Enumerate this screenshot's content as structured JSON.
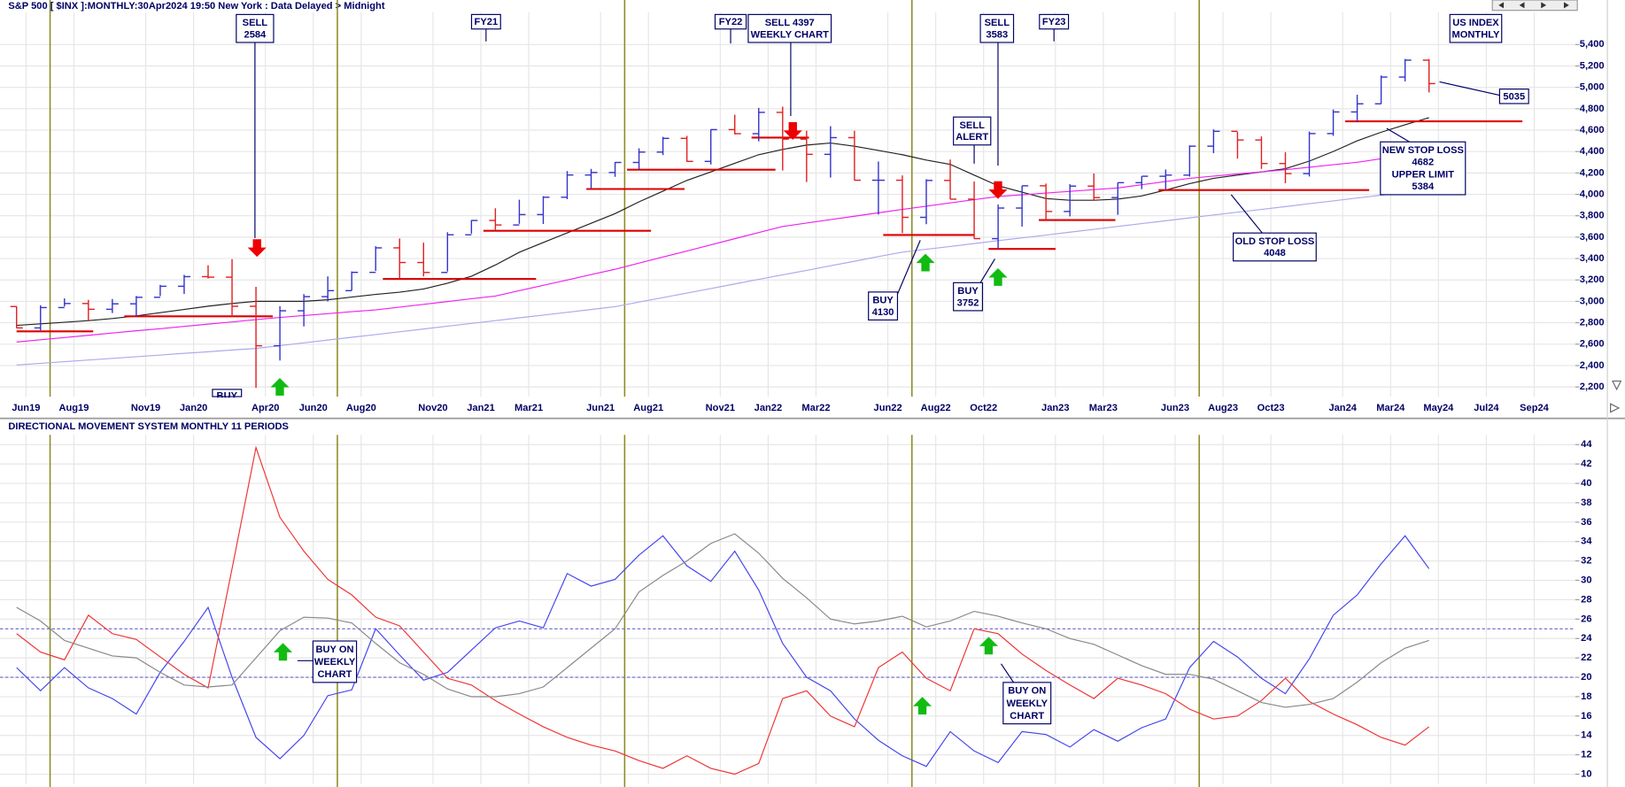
{
  "chart_data": [
    {
      "type": "ohlc",
      "title": "S&P 500 [ $INX ]:MONTHLY:30Apr2024 19:50 New York : Data Delayed > Midnight",
      "categories": [
        null,
        "Jun19",
        null,
        "Aug19",
        null,
        null,
        "Nov19",
        null,
        "Jan20",
        null,
        null,
        "Apr20",
        null,
        "Jun20",
        null,
        "Aug20",
        null,
        null,
        "Nov20",
        null,
        "Jan21",
        null,
        "Mar21",
        null,
        null,
        "Jun21",
        null,
        "Aug21",
        null,
        null,
        "Nov21",
        null,
        "Jan22",
        null,
        "Mar22",
        null,
        null,
        "Jun22",
        null,
        "Aug22",
        null,
        "Oct22",
        null,
        null,
        "Jan23",
        null,
        "Mar23",
        null,
        null,
        "Jun23",
        null,
        "Aug23",
        null,
        "Oct23",
        null,
        null,
        "Jan24",
        null,
        "Mar24",
        null,
        "May24",
        null,
        "Jul24",
        null,
        "Sep24"
      ],
      "open": [
        2952,
        2752,
        2942,
        2980,
        2926,
        2977,
        3038,
        3141,
        3231,
        3226,
        2954,
        2585,
        2912,
        3044,
        3100,
        3271,
        3500,
        3363,
        3270,
        3622,
        3756,
        3714,
        3811,
        3973,
        4181,
        4204,
        4298,
        4395,
        4523,
        4308,
        4605,
        4567,
        4766,
        4516,
        4374,
        4530,
        4132,
        4132,
        3785,
        4130,
        3955,
        3586,
        3872,
        4080,
        3840,
        4077,
        3970,
        4109,
        4169,
        4180,
        4450,
        4589,
        4508,
        4288,
        4194,
        4568,
        4770,
        4846,
        5096,
        5254,
        null,
        null,
        null,
        null,
        null
      ],
      "high": [
        2954,
        2964,
        3028,
        3014,
        3022,
        3050,
        3154,
        3248,
        3338,
        3394,
        3136,
        2955,
        3068,
        3233,
        3280,
        3515,
        3588,
        3549,
        3646,
        3760,
        3870,
        3950,
        3983,
        4218,
        4238,
        4302,
        4430,
        4537,
        4546,
        4608,
        4744,
        4808,
        4819,
        4595,
        4637,
        4594,
        4307,
        4177,
        4141,
        4325,
        4120,
        3905,
        4080,
        4101,
        4095,
        4195,
        4110,
        4170,
        4232,
        4458,
        4607,
        4584,
        4541,
        4393,
        4587,
        4793,
        4931,
        5111,
        5265,
        5264,
        null,
        null,
        null,
        null,
        null
      ],
      "low": [
        2750,
        2729,
        2952,
        2822,
        2891,
        2855,
        3050,
        3070,
        3214,
        2855,
        2192,
        2447,
        2766,
        2999,
        3101,
        3284,
        3209,
        3233,
        3279,
        3633,
        3662,
        3725,
        3723,
        3955,
        4057,
        4164,
        4233,
        4367,
        4305,
        4279,
        4560,
        4495,
        4223,
        4115,
        4157,
        4129,
        3811,
        3637,
        3721,
        3954,
        3585,
        3492,
        3699,
        3764,
        3794,
        3943,
        3809,
        4049,
        4048,
        4166,
        4385,
        4335,
        4238,
        4104,
        4167,
        4547,
        4683,
        4845,
        5056,
        4953,
        null,
        null,
        null,
        null,
        null
      ],
      "close": [
        2752,
        2942,
        2980,
        2926,
        2977,
        3038,
        3141,
        3231,
        3226,
        2954,
        2585,
        2912,
        3044,
        3100,
        3271,
        3500,
        3363,
        3270,
        3622,
        3756,
        3714,
        3811,
        3973,
        4181,
        4204,
        4298,
        4395,
        4523,
        4308,
        4605,
        4567,
        4766,
        4516,
        4374,
        4530,
        4132,
        4132,
        3785,
        4130,
        3955,
        3586,
        3872,
        4080,
        3840,
        4077,
        3970,
        4109,
        4169,
        4180,
        4450,
        4589,
        4508,
        4288,
        4194,
        4568,
        4770,
        4846,
        5096,
        5254,
        5035,
        null,
        null,
        null,
        null,
        null
      ],
      "up_color": "#3333cc",
      "down_color": "#e02020",
      "series": [
        {
          "color": "#222222",
          "values": [
            2776,
            2790,
            2805,
            2820,
            2840,
            2865,
            2895,
            2925,
            2955,
            2980,
            3000,
            3000,
            3000,
            3015,
            3040,
            3065,
            3085,
            3115,
            3170,
            3234,
            3340,
            3459,
            3550,
            3640,
            3730,
            3820,
            3930,
            4030,
            4130,
            4210,
            4290,
            4370,
            4420,
            4460,
            4480,
            4450,
            4410,
            4370,
            4320,
            4280,
            4180,
            4080,
            4020,
            3960,
            3945,
            3945,
            3955,
            3985,
            4040,
            4100,
            4150,
            4180,
            4210,
            4240,
            4310,
            4400,
            4500,
            4580,
            4650,
            4717,
            null,
            null,
            null,
            null,
            null
          ]
        },
        {
          "color": "#ee22ee",
          "values": [
            2620,
            2641,
            2662,
            2683,
            2704,
            2725,
            2745,
            2766,
            2787,
            2808,
            2829,
            2850,
            2868,
            2885,
            2903,
            2920,
            2946,
            2972,
            2998,
            3024,
            3050,
            3100,
            3150,
            3200,
            3250,
            3300,
            3357,
            3414,
            3471,
            3529,
            3586,
            3643,
            3700,
            3732,
            3764,
            3796,
            3828,
            3860,
            3890,
            3920,
            3950,
            3980,
            3996,
            4012,
            4028,
            4044,
            4060,
            4090,
            4120,
            4150,
            4170,
            4190,
            4210,
            4230,
            4253,
            4277,
            4300,
            4333,
            4367,
            4400,
            null,
            null,
            null,
            null,
            null
          ]
        },
        {
          "color": "#aaaaee",
          "values": [
            2405,
            2421,
            2436,
            2452,
            2467,
            2483,
            2498,
            2514,
            2529,
            2545,
            2560,
            2586,
            2612,
            2638,
            2664,
            2690,
            2716,
            2742,
            2768,
            2794,
            2820,
            2846,
            2872,
            2898,
            2924,
            2950,
            2993,
            3035,
            3078,
            3120,
            3163,
            3205,
            3248,
            3290,
            3333,
            3375,
            3418,
            3460,
            3487,
            3513,
            3540,
            3567,
            3593,
            3620,
            3647,
            3673,
            3700,
            3727,
            3753,
            3780,
            3807,
            3833,
            3860,
            3886,
            3913,
            3939,
            3966,
            3992,
            4019,
            4045,
            null,
            null,
            null,
            null,
            null
          ]
        }
      ],
      "stop_color": "#dd0000",
      "stop_lines": [
        {
          "value": 2720,
          "start": 0,
          "end": 3.2
        },
        {
          "value": 2860,
          "start": 4.5,
          "end": 10.7
        },
        {
          "value": 3210,
          "start": 15.3,
          "end": 21.7
        },
        {
          "value": 3660,
          "start": 19.5,
          "end": 26.5
        },
        {
          "value": 4050,
          "start": 23.8,
          "end": 27.9
        },
        {
          "value": 4230,
          "start": 25.5,
          "end": 31.7
        },
        {
          "value": 4530,
          "start": 30.7,
          "end": 33.1
        },
        {
          "value": 3620,
          "start": 36.2,
          "end": 40
        },
        {
          "value": 3490,
          "start": 40.6,
          "end": 43.4
        },
        {
          "value": 3760,
          "start": 42.7,
          "end": 45.9
        },
        {
          "value": 4040,
          "start": 47.7,
          "end": 56.5
        },
        {
          "value": 4682,
          "start": 55.5,
          "end": 62.9
        }
      ],
      "annotations": [
        {
          "lines": [
            "SELL",
            "2584"
          ]
        },
        {
          "lines": [
            "FY21"
          ]
        },
        {
          "lines": [
            "FY22"
          ]
        },
        {
          "lines": [
            "SELL  4397",
            "WEEKLY CHART"
          ]
        },
        {
          "lines": [
            "SELL",
            "3583"
          ]
        },
        {
          "lines": [
            "FY23"
          ]
        },
        {
          "lines": [
            "US INDEX",
            "MONTHLY"
          ]
        },
        {
          "lines": [
            "SELL",
            "ALERT"
          ]
        },
        {
          "lines": [
            "5035"
          ]
        },
        {
          "lines": [
            "NEW STOP LOSS",
            "4682",
            "UPPER LIMIT",
            "5384"
          ]
        },
        {
          "lines": [
            "OLD STOP LOSS",
            "4048"
          ]
        },
        {
          "lines": [
            "BUY",
            "4130"
          ]
        },
        {
          "lines": [
            "BUY",
            "3752"
          ]
        },
        {
          "lines": [
            "BUY"
          ]
        }
      ],
      "ylim": [
        2110,
        5700
      ],
      "yticks": [
        {
          "value": 2200,
          "label": "2,200"
        },
        {
          "value": 2400,
          "label": "2,400"
        },
        {
          "value": 2600,
          "label": "2,600"
        },
        {
          "value": 2800,
          "label": "2,800"
        },
        {
          "value": 3000,
          "label": "3,000"
        },
        {
          "value": 3200,
          "label": "3,200"
        },
        {
          "value": 3400,
          "label": "3,400"
        },
        {
          "value": 3600,
          "label": "3,600"
        },
        {
          "value": 3800,
          "label": "3,800"
        },
        {
          "value": 4000,
          "label": "4,000"
        },
        {
          "value": 4200,
          "label": "4,200"
        },
        {
          "value": 4400,
          "label": "4,400"
        },
        {
          "value": 4600,
          "label": "4,600"
        },
        {
          "value": 4800,
          "label": "4,800"
        },
        {
          "value": 5000,
          "label": "5,000"
        },
        {
          "value": 5200,
          "label": "5,200"
        },
        {
          "value": 5400,
          "label": "5,400"
        }
      ],
      "grid": true
    },
    {
      "type": "line",
      "title": "DIRECTIONAL MOVEMENT SYSTEM MONTHLY 11 PERIODS",
      "series": [
        {
          "color": "#4444ee",
          "values": [
            21.0,
            18.6,
            21,
            18.9,
            17.8,
            16.2,
            20.5,
            23.7,
            27.2,
            20,
            13.8,
            11.6,
            14,
            18.1,
            18.7,
            25,
            22.3,
            19.7,
            20.5,
            22.8,
            25.1,
            25.8,
            25.1,
            30.7,
            29.4,
            30.1,
            32.6,
            34.6,
            31.5,
            29.9,
            33,
            29,
            23.5,
            20,
            18.6,
            15.7,
            13.5,
            11.9,
            10.8,
            14.4,
            12.4,
            11.2,
            14.4,
            14.1,
            12.8,
            14.6,
            13.4,
            14.8,
            15.7,
            21,
            23.7,
            22.1,
            19.9,
            18.3,
            21.9,
            26.4,
            28.5,
            31.7,
            34.6,
            31.2
          ]
        },
        {
          "color": "#ee3333",
          "values": [
            24.5,
            22.6,
            21.8,
            26.4,
            24.5,
            23.9,
            22.1,
            20.3,
            18.9,
            31.2,
            43.7,
            36.5,
            33,
            30.1,
            28.5,
            26.2,
            25.3,
            22.6,
            19.9,
            19.2,
            17.6,
            16.2,
            14.9,
            13.8,
            13,
            12.4,
            11.4,
            10.6,
            11.9,
            10.6,
            10,
            11.1,
            17.8,
            18.6,
            16,
            14.9,
            21,
            22.6,
            19.9,
            18.6,
            25,
            24.5,
            22.4,
            20.7,
            19.2,
            17.8,
            19.9,
            19.2,
            18.3,
            16.7,
            15.7,
            16,
            17.6,
            19.9,
            17.5,
            16.2,
            15.1,
            13.8,
            13,
            14.9
          ]
        },
        {
          "color": "#888888",
          "values": [
            27.2,
            25.8,
            23.8,
            23,
            22.2,
            22,
            20.5,
            19.2,
            19,
            19.2,
            22,
            24.8,
            26.2,
            26.1,
            25.6,
            23.5,
            21.5,
            20.3,
            18.8,
            18,
            18,
            18.3,
            19,
            21,
            23,
            25,
            28.8,
            30.5,
            32,
            33.8,
            34.8,
            32.8,
            30.2,
            28.2,
            26,
            25.5,
            25.8,
            26.3,
            25.2,
            25.8,
            26.8,
            26.3,
            25.6,
            25,
            24,
            23.4,
            22.3,
            21.2,
            20.3,
            20.3,
            19.8,
            18.6,
            17.4,
            16.9,
            17.2,
            17.8,
            19.5,
            21.5,
            23,
            23.8
          ]
        }
      ],
      "levels": [
        25,
        20
      ],
      "level_color": "#6666cc",
      "annotations": [
        {
          "lines": [
            "BUY ON",
            "WEEKLY",
            "CHART"
          ]
        },
        {
          "lines": [
            "BUY ON",
            "WEEKLY",
            "CHART"
          ]
        }
      ],
      "ylim": [
        9,
        45
      ],
      "yticks": [
        10,
        12,
        14,
        16,
        18,
        20,
        22,
        24,
        26,
        28,
        30,
        32,
        34,
        36,
        38,
        40,
        42,
        44
      ],
      "grid": true
    }
  ]
}
